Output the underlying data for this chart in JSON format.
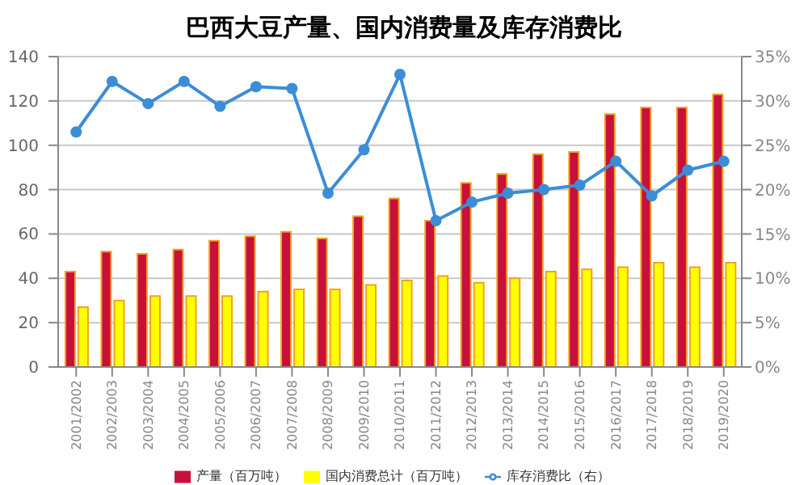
{
  "chart_data": {
    "type": "bar",
    "title": "巴西大豆产量、国内消费量及库存消费比",
    "categories": [
      "2001/2002",
      "2002/2003",
      "2003/2004",
      "2004/2005",
      "2005/2006",
      "2006/2007",
      "2007/2008",
      "2008/2009",
      "2009/2010",
      "2010/2011",
      "2011/2012",
      "2012/2013",
      "2013/2014",
      "2014/2015",
      "2015/2016",
      "2016/2017",
      "2017/2018",
      "2018/2019",
      "2019/2020"
    ],
    "series": [
      {
        "name": "产量（百万吨）",
        "color": "#c8103c",
        "values": [
          43,
          52,
          51,
          53,
          57,
          59,
          61,
          58,
          68,
          76,
          66,
          83,
          87,
          96,
          97,
          114,
          117,
          117,
          123
        ]
      },
      {
        "name": "国内消费总计（百万吨）",
        "color": "#ffff00",
        "values": [
          27,
          30,
          32,
          32,
          32,
          34,
          35,
          35,
          37,
          39,
          41,
          38,
          40,
          43,
          44,
          45,
          47,
          45,
          47
        ]
      },
      {
        "name": "库存消费比（右）",
        "type": "line",
        "axis": "y2",
        "color": "#3c8dd6",
        "values": [
          26.5,
          32.2,
          29.7,
          32.2,
          29.4,
          31.6,
          31.4,
          19.6,
          24.5,
          33,
          16.5,
          18.6,
          19.6,
          20,
          20.5,
          23.2,
          19.3,
          22.2,
          23.2
        ]
      }
    ],
    "ylim": [
      0,
      140
    ],
    "yticks": [
      0,
      20,
      40,
      60,
      80,
      100,
      120,
      140
    ],
    "y2lim": [
      0,
      35
    ],
    "y2ticks": [
      {
        "value": 0,
        "label": "0%"
      },
      {
        "value": 5,
        "label": "5%"
      },
      {
        "value": 10,
        "label": "10%"
      },
      {
        "value": 15,
        "label": "15%"
      },
      {
        "value": 20,
        "label": "20%"
      },
      {
        "value": 25,
        "label": "25%"
      },
      {
        "value": 30,
        "label": "30%"
      },
      {
        "value": 35,
        "label": "35%"
      }
    ],
    "grid": "y",
    "legend": "bottom",
    "marker": "circle"
  }
}
